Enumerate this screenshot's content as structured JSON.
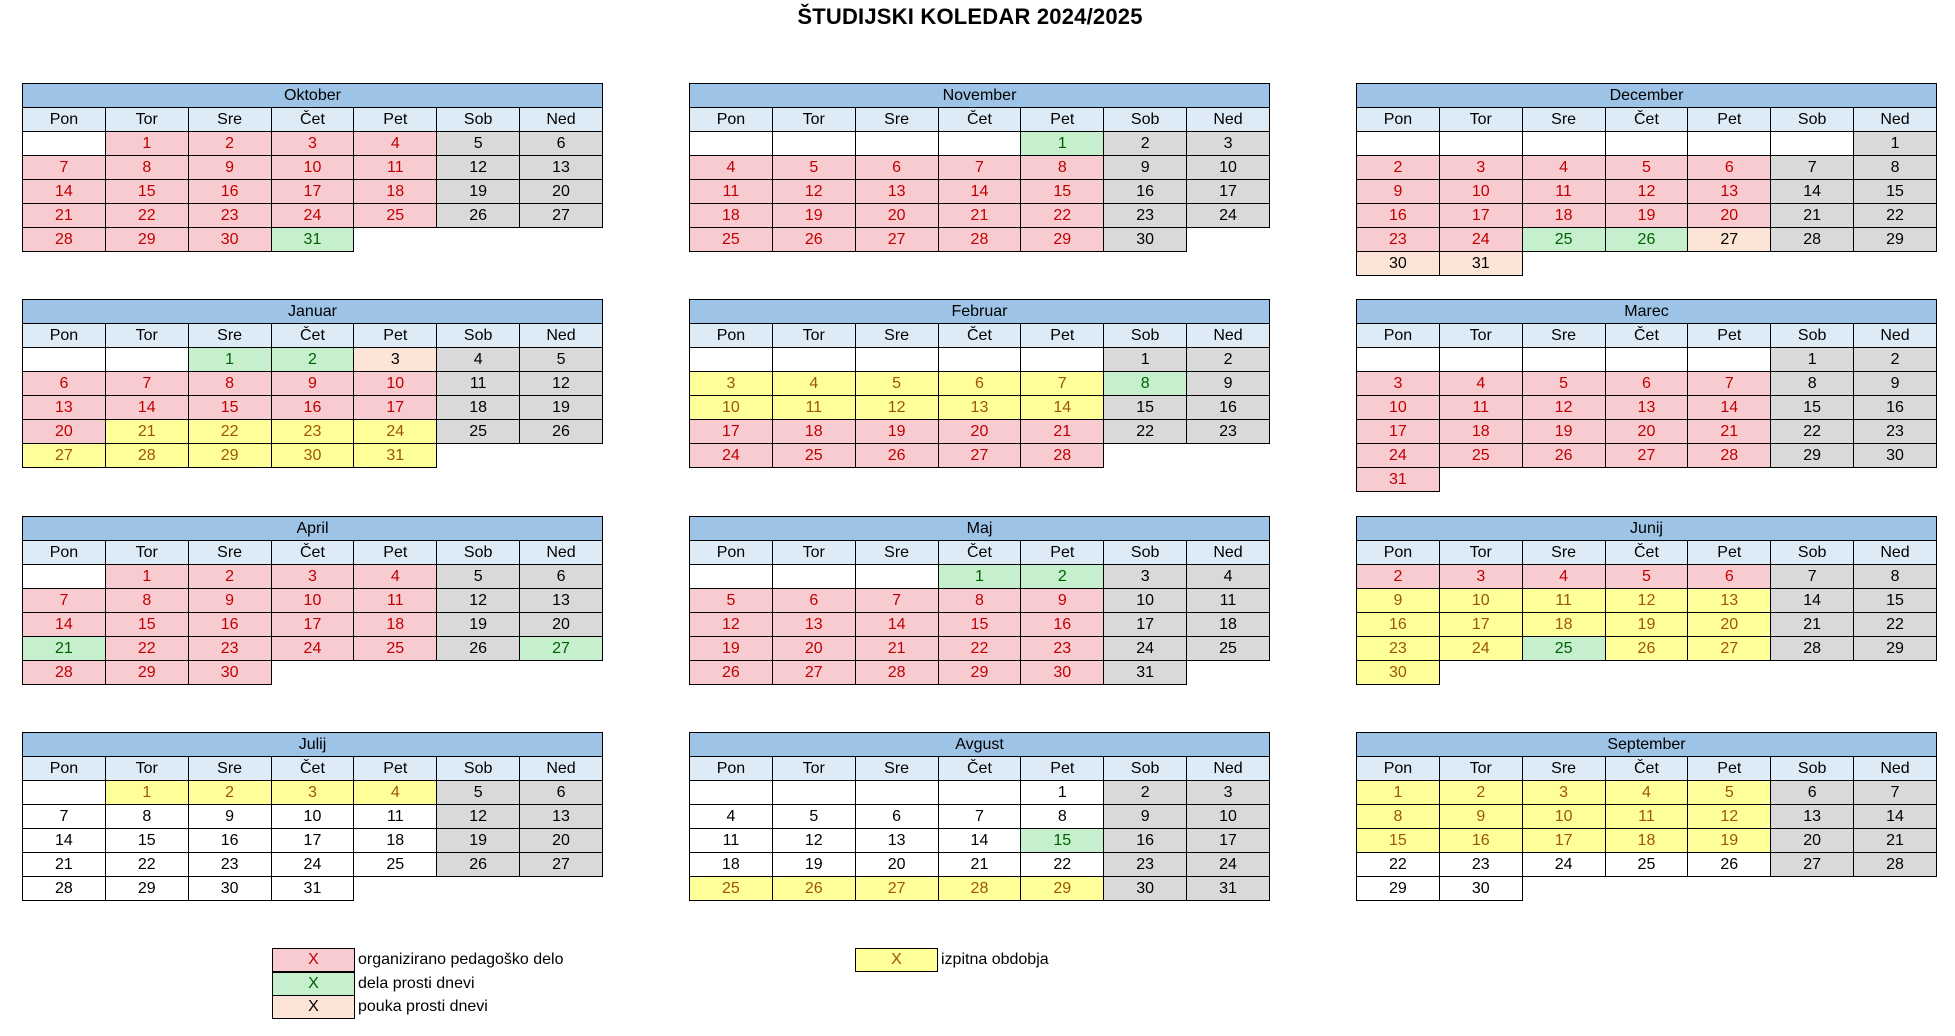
{
  "title": "ŠTUDIJSKI KOLEDAR 2024/2025",
  "day_names": [
    "Pon",
    "Tor",
    "Sre",
    "Čet",
    "Pet",
    "Sob",
    "Ned"
  ],
  "colors": {
    "pedagogical_work": "#f8cbd1",
    "work_free_days": "#c6efce",
    "exam_periods": "#ffff99",
    "lecture_free_days": "#fce4d6",
    "weekend": "#d9d9d9",
    "header_month": "#9dc3e6",
    "header_day": "#ddebf7"
  },
  "months": [
    {
      "name": "Oktober",
      "rows": [
        [
          "",
          "1r",
          "2r",
          "3r",
          "4r",
          "5w",
          "6w"
        ],
        [
          "7r",
          "8r",
          "9r",
          "10r",
          "11r",
          "12w",
          "13w"
        ],
        [
          "14r",
          "15r",
          "16r",
          "17r",
          "18r",
          "19w",
          "20w"
        ],
        [
          "21r",
          "22r",
          "23r",
          "24r",
          "25r",
          "26w",
          "27w"
        ],
        [
          "28r",
          "29r",
          "30r",
          "31g",
          "-",
          "-",
          "-"
        ]
      ]
    },
    {
      "name": "November",
      "rows": [
        [
          "",
          "",
          "",
          "",
          "1g",
          "2w",
          "3w"
        ],
        [
          "4r",
          "5r",
          "6r",
          "7r",
          "8r",
          "9w",
          "10w"
        ],
        [
          "11r",
          "12r",
          "13r",
          "14r",
          "15r",
          "16w",
          "17w"
        ],
        [
          "18r",
          "19r",
          "20r",
          "21r",
          "22r",
          "23w",
          "24w"
        ],
        [
          "25r",
          "26r",
          "27r",
          "28r",
          "29r",
          "30w",
          "-"
        ]
      ]
    },
    {
      "name": "December",
      "rows": [
        [
          "",
          "",
          "",
          "",
          "",
          "",
          "1w"
        ],
        [
          "2r",
          "3r",
          "4r",
          "5r",
          "6r",
          "7w",
          "8w"
        ],
        [
          "9r",
          "10r",
          "11r",
          "12r",
          "13r",
          "14w",
          "15w"
        ],
        [
          "16r",
          "17r",
          "18r",
          "19r",
          "20r",
          "21w",
          "22w"
        ],
        [
          "23r",
          "24r",
          "25g",
          "26g",
          "27o",
          "28w",
          "29w"
        ],
        [
          "30o",
          "31o",
          "-",
          "-",
          "-",
          "-",
          "-"
        ]
      ]
    },
    {
      "name": "Januar",
      "rows": [
        [
          "",
          "",
          "1g",
          "2g",
          "3o",
          "4w",
          "5w"
        ],
        [
          "6r",
          "7r",
          "8r",
          "9r",
          "10r",
          "11w",
          "12w"
        ],
        [
          "13r",
          "14r",
          "15r",
          "16r",
          "17r",
          "18w",
          "19w"
        ],
        [
          "20r",
          "21y",
          "22y",
          "23y",
          "24y",
          "25w",
          "26w"
        ],
        [
          "27y",
          "28y",
          "29y",
          "30y",
          "31y",
          "-",
          "-"
        ]
      ]
    },
    {
      "name": "Februar",
      "rows": [
        [
          "",
          "",
          "",
          "",
          "",
          "1w",
          "2w"
        ],
        [
          "3y",
          "4y",
          "5y",
          "6y",
          "7y",
          "8g",
          "9w"
        ],
        [
          "10y",
          "11y",
          "12y",
          "13y",
          "14y",
          "15w",
          "16w"
        ],
        [
          "17r",
          "18r",
          "19r",
          "20r",
          "21r",
          "22w",
          "23w"
        ],
        [
          "24r",
          "25r",
          "26r",
          "27r",
          "28r",
          "-",
          "-"
        ]
      ]
    },
    {
      "name": "Marec",
      "rows": [
        [
          "",
          "",
          "",
          "",
          "",
          "1w",
          "2w"
        ],
        [
          "3r",
          "4r",
          "5r",
          "6r",
          "7r",
          "8w",
          "9w"
        ],
        [
          "10r",
          "11r",
          "12r",
          "13r",
          "14r",
          "15w",
          "16w"
        ],
        [
          "17r",
          "18r",
          "19r",
          "20r",
          "21r",
          "22w",
          "23w"
        ],
        [
          "24r",
          "25r",
          "26r",
          "27r",
          "28r",
          "29w",
          "30w"
        ],
        [
          "31r",
          "-",
          "-",
          "-",
          "-",
          "-",
          "-"
        ]
      ]
    },
    {
      "name": "April",
      "rows": [
        [
          "",
          "1r",
          "2r",
          "3r",
          "4r",
          "5w",
          "6w"
        ],
        [
          "7r",
          "8r",
          "9r",
          "10r",
          "11r",
          "12w",
          "13w"
        ],
        [
          "14r",
          "15r",
          "16r",
          "17r",
          "18r",
          "19w",
          "20w"
        ],
        [
          "21g",
          "22r",
          "23r",
          "24r",
          "25r",
          "26w",
          "27g"
        ],
        [
          "28r",
          "29r",
          "30r",
          "-",
          "-",
          "-",
          "-"
        ]
      ]
    },
    {
      "name": "Maj",
      "rows": [
        [
          "",
          "",
          "",
          "1g",
          "2g",
          "3w",
          "4w"
        ],
        [
          "5r",
          "6r",
          "7r",
          "8r",
          "9r",
          "10w",
          "11w"
        ],
        [
          "12r",
          "13r",
          "14r",
          "15r",
          "16r",
          "17w",
          "18w"
        ],
        [
          "19r",
          "20r",
          "21r",
          "22r",
          "23r",
          "24w",
          "25w"
        ],
        [
          "26r",
          "27r",
          "28r",
          "29r",
          "30r",
          "31w",
          "-"
        ]
      ]
    },
    {
      "name": "Junij",
      "rows": [
        [
          "2r",
          "3r",
          "4r",
          "5r",
          "6r",
          "7w",
          "8w"
        ],
        [
          "9y",
          "10y",
          "11y",
          "12y",
          "13y",
          "14w",
          "15w"
        ],
        [
          "16y",
          "17y",
          "18y",
          "19y",
          "20y",
          "21w",
          "22w"
        ],
        [
          "23y",
          "24y",
          "25g",
          "26y",
          "27y",
          "28w",
          "29w"
        ],
        [
          "30y",
          "-",
          "-",
          "-",
          "-",
          "-",
          "-"
        ]
      ]
    },
    {
      "name": "Julij",
      "rows": [
        [
          "",
          "1y",
          "2y",
          "3y",
          "4y",
          "5w",
          "6w"
        ],
        [
          "7n",
          "8n",
          "9n",
          "10n",
          "11n",
          "12w",
          "13w"
        ],
        [
          "14n",
          "15n",
          "16n",
          "17n",
          "18n",
          "19w",
          "20w"
        ],
        [
          "21n",
          "22n",
          "23n",
          "24n",
          "25n",
          "26w",
          "27w"
        ],
        [
          "28n",
          "29n",
          "30n",
          "31n",
          "-",
          "-",
          "-"
        ]
      ]
    },
    {
      "name": "Avgust",
      "rows": [
        [
          "",
          "",
          "",
          "",
          "1n",
          "2w",
          "3w"
        ],
        [
          "4n",
          "5n",
          "6n",
          "7n",
          "8n",
          "9w",
          "10w"
        ],
        [
          "11n",
          "12n",
          "13n",
          "14n",
          "15g",
          "16w",
          "17w"
        ],
        [
          "18n",
          "19n",
          "20n",
          "21n",
          "22n",
          "23w",
          "24w"
        ],
        [
          "25y",
          "26y",
          "27y",
          "28y",
          "29y",
          "30w",
          "31w"
        ]
      ]
    },
    {
      "name": "September",
      "rows": [
        [
          "1y",
          "2y",
          "3y",
          "4y",
          "5y",
          "6w",
          "7w"
        ],
        [
          "8y",
          "9y",
          "10y",
          "11y",
          "12y",
          "13w",
          "14w"
        ],
        [
          "15y",
          "16y",
          "17y",
          "18y",
          "19y",
          "20w",
          "21w"
        ],
        [
          "22n",
          "23n",
          "24n",
          "25n",
          "26n",
          "27w",
          "28w"
        ],
        [
          "29n",
          "30n",
          "-",
          "-",
          "-",
          "-",
          "-"
        ]
      ]
    }
  ],
  "legend": [
    {
      "marker": "X",
      "label": "organizirano pedagoško delo",
      "type": "r"
    },
    {
      "marker": "X",
      "label": "dela prosti dnevi",
      "type": "g"
    },
    {
      "marker": "X",
      "label": "pouka prosti dnevi",
      "type": "o"
    },
    {
      "marker": "X",
      "label": "izpitna obdobja",
      "type": "y"
    }
  ]
}
